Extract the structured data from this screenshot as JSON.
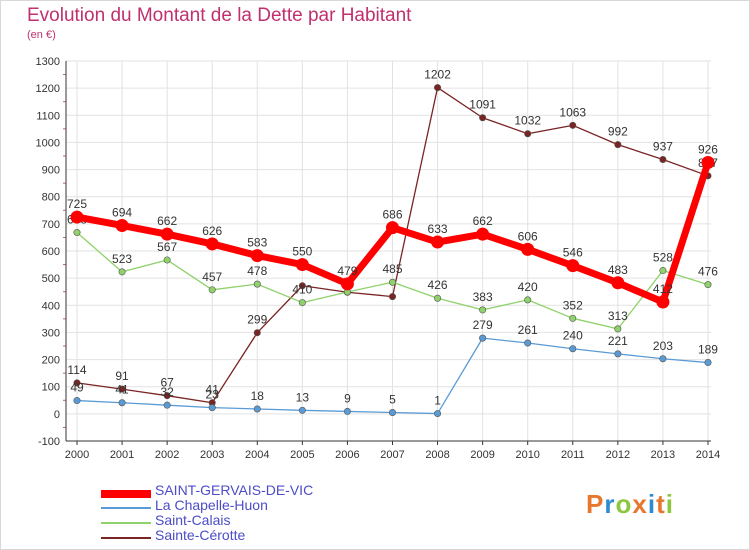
{
  "header": {
    "title": "Evolution du Montant de la Dette par Habitant",
    "unit": "(en €)"
  },
  "colors": {
    "title": "#c0306e",
    "grid": "#e2e2e2",
    "axis": "#333333",
    "legend_text": "#4c4cc8"
  },
  "logo": {
    "letters": [
      {
        "char": "P",
        "color": "#e8772e"
      },
      {
        "char": "r",
        "color": "#2e8bd0"
      },
      {
        "char": "o",
        "color": "#8dc63f"
      },
      {
        "char": "x",
        "color": "#e8772e"
      },
      {
        "char": "i",
        "color": "#2e8bd0"
      },
      {
        "char": "t",
        "color": "#e8772e"
      },
      {
        "char": "i",
        "color": "#8dc63f"
      }
    ]
  },
  "chart_data": {
    "type": "line",
    "title": "Evolution du Montant de la Dette par Habitant",
    "ylabel": "(en €)",
    "xlabel": "",
    "x": [
      "2000",
      "2001",
      "2002",
      "2003",
      "2004",
      "2005",
      "2006",
      "2007",
      "2008",
      "2009",
      "2010",
      "2011",
      "2012",
      "2013",
      "2014"
    ],
    "ylim": [
      -100,
      1300
    ],
    "yticks": [
      -100,
      0,
      100,
      200,
      300,
      400,
      500,
      600,
      700,
      800,
      900,
      1000,
      1100,
      1200,
      1300
    ],
    "grid": true,
    "legend_position": "bottom-left",
    "series": [
      {
        "name": "Sainte-Cérotte",
        "color": "#7a2424",
        "style": "thin",
        "values": [
          114,
          91,
          67,
          41,
          299,
          472,
          448,
          432,
          1202,
          1091,
          1032,
          1063,
          992,
          937,
          877
        ],
        "labels": [
          "114",
          "91",
          "67",
          "41",
          "299",
          "",
          "",
          "",
          "1202",
          "1091",
          "1032",
          "1063",
          "992",
          "937",
          "877"
        ]
      },
      {
        "name": "Saint-Calais",
        "color": "#8fd16a",
        "style": "thin",
        "values": [
          668,
          523,
          567,
          457,
          478,
          410,
          449,
          485,
          426,
          383,
          420,
          352,
          313,
          528,
          476
        ],
        "labels": [
          "668",
          "523",
          "567",
          "457",
          "478",
          "410",
          "",
          "485",
          "426",
          "383",
          "420",
          "352",
          "313",
          "528",
          "476"
        ]
      },
      {
        "name": "La Chapelle-Huon",
        "color": "#5b9bd5",
        "style": "thin",
        "values": [
          49,
          41,
          32,
          23,
          18,
          13,
          9,
          5,
          1,
          279,
          261,
          240,
          221,
          203,
          189
        ],
        "labels": [
          "49",
          "41",
          "32",
          "23",
          "18",
          "13",
          "9",
          "5",
          "1",
          "279",
          "261",
          "240",
          "221",
          "203",
          "189"
        ]
      },
      {
        "name": "SAINT-GERVAIS-DE-VIC",
        "color": "#ff0000",
        "style": "thick",
        "values": [
          725,
          694,
          662,
          626,
          583,
          550,
          479,
          686,
          633,
          662,
          606,
          546,
          483,
          412,
          926
        ],
        "labels": [
          "725",
          "694",
          "662",
          "626",
          "583",
          "550",
          "479",
          "686",
          "633",
          "662",
          "606",
          "546",
          "483",
          "412",
          "926"
        ]
      }
    ],
    "legend": [
      "SAINT-GERVAIS-DE-VIC",
      "La Chapelle-Huon",
      "Saint-Calais",
      "Sainte-Cérotte"
    ]
  }
}
